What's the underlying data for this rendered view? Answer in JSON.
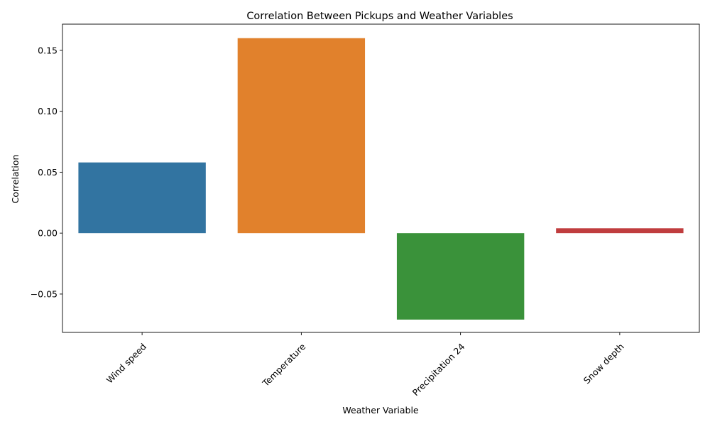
{
  "chart_data": {
    "type": "bar",
    "title": "Correlation Between Pickups and Weather Variables",
    "xlabel": "Weather Variable",
    "ylabel": "Correlation",
    "categories": [
      "Wind speed",
      "Temperature",
      "Precipitation 24",
      "Snow depth"
    ],
    "values": [
      0.058,
      0.16,
      -0.071,
      0.004
    ],
    "colors": [
      "#3274a1",
      "#e1812c",
      "#3a923a",
      "#c03d3e"
    ],
    "ylim": [
      -0.0815,
      0.1715
    ],
    "yticks": [
      -0.05,
      0.0,
      0.05,
      0.1,
      0.15
    ],
    "ytick_labels": [
      "−0.05",
      "0.00",
      "0.05",
      "0.10",
      "0.15"
    ],
    "grid": false,
    "legend": "none"
  }
}
